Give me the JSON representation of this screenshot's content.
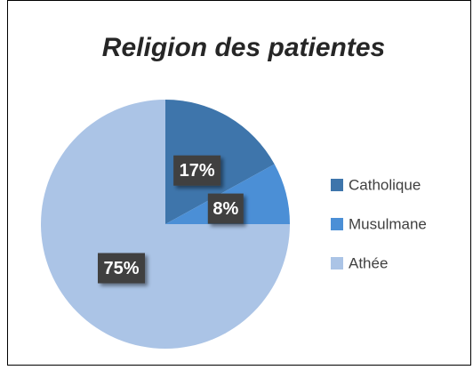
{
  "chart_data": {
    "type": "pie",
    "title": "Religion des patientes",
    "categories": [
      "Catholique",
      "Musulmane",
      "Athée"
    ],
    "values": [
      17,
      8,
      75
    ],
    "value_labels": [
      "17%",
      "8%",
      "75%"
    ],
    "colors": [
      "#3e75ab",
      "#4b8fd6",
      "#abc4e6"
    ],
    "legend": "right"
  }
}
